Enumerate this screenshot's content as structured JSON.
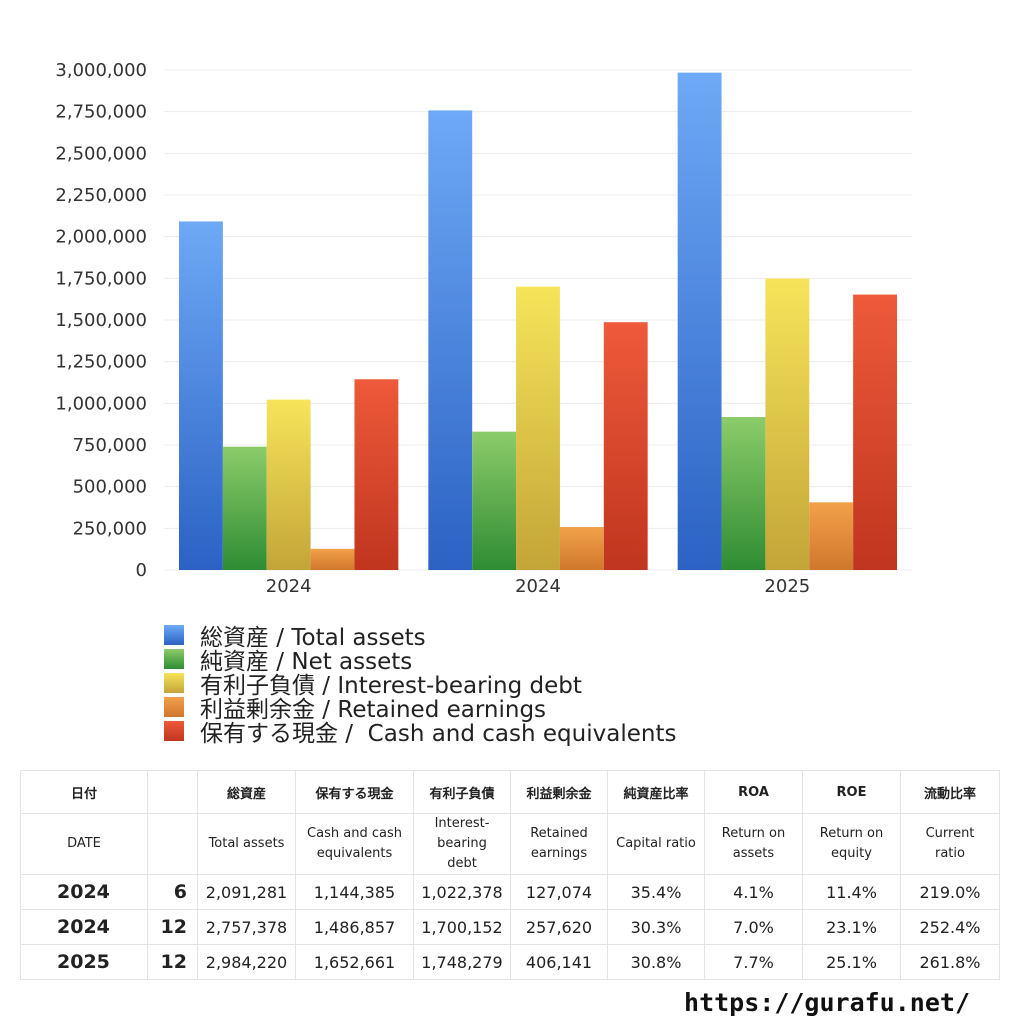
{
  "chart_data": {
    "type": "bar",
    "categories": [
      "2024",
      "2024",
      "2025"
    ],
    "series": [
      {
        "name": "総資産 / Total assets",
        "values": [
          2091281,
          2757378,
          2984220
        ],
        "color_top": "#6ea9f6",
        "color_bottom": "#2b62c4"
      },
      {
        "name": "純資産 / Net assets",
        "values": [
          740000,
          830000,
          918000
        ],
        "color_top": "#8ccc6a",
        "color_bottom": "#2f8c33"
      },
      {
        "name": "有利子負債 / Interest-bearing debt",
        "values": [
          1022378,
          1700152,
          1748279
        ],
        "color_top": "#f7e45a",
        "color_bottom": "#c3a538"
      },
      {
        "name": "利益剰余金 / Retained earnings",
        "values": [
          127074,
          257620,
          406141
        ],
        "color_top": "#f2a14a",
        "color_bottom": "#d0772d"
      },
      {
        "name": "保有する現金 /  Cash and cash equivalents",
        "values": [
          1144385,
          1486857,
          1652661
        ],
        "color_top": "#ee5a3a",
        "color_bottom": "#c0351f"
      }
    ],
    "ylim": [
      0,
      3000000
    ],
    "yticks": [
      "0",
      "250,000",
      "500,000",
      "750,000",
      "1,000,000",
      "1,250,000",
      "1,500,000",
      "1,750,000",
      "2,000,000",
      "2,250,000",
      "2,500,000",
      "2,750,000",
      "3,000,000"
    ],
    "grid": true,
    "legend_position": "bottom"
  },
  "table": {
    "header_jp": [
      "日付",
      "",
      "総資産",
      "保有する現金",
      "有利子負債",
      "利益剰余金",
      "純資産比率",
      "ROA",
      "ROE",
      "流動比率"
    ],
    "header_en": [
      "DATE",
      "",
      "Total assets",
      "Cash and cash\nequivalents",
      "Interest-\nbearing\ndebt",
      "Retained\nearnings",
      "Capital ratio",
      "Return on\nassets",
      "Return on\nequity",
      "Current\nratio"
    ],
    "rows": [
      [
        "2024",
        "6",
        "2,091,281",
        "1,144,385",
        "1,022,378",
        "127,074",
        "35.4%",
        "4.1%",
        "11.4%",
        "219.0%"
      ],
      [
        "2024",
        "12",
        "2,757,378",
        "1,486,857",
        "1,700,152",
        "257,620",
        "30.3%",
        "7.0%",
        "23.1%",
        "252.4%"
      ],
      [
        "2025",
        "12",
        "2,984,220",
        "1,652,661",
        "1,748,279",
        "406,141",
        "30.8%",
        "7.7%",
        "25.1%",
        "261.8%"
      ]
    ]
  },
  "footer": {
    "url": "https://gurafu.net/"
  }
}
